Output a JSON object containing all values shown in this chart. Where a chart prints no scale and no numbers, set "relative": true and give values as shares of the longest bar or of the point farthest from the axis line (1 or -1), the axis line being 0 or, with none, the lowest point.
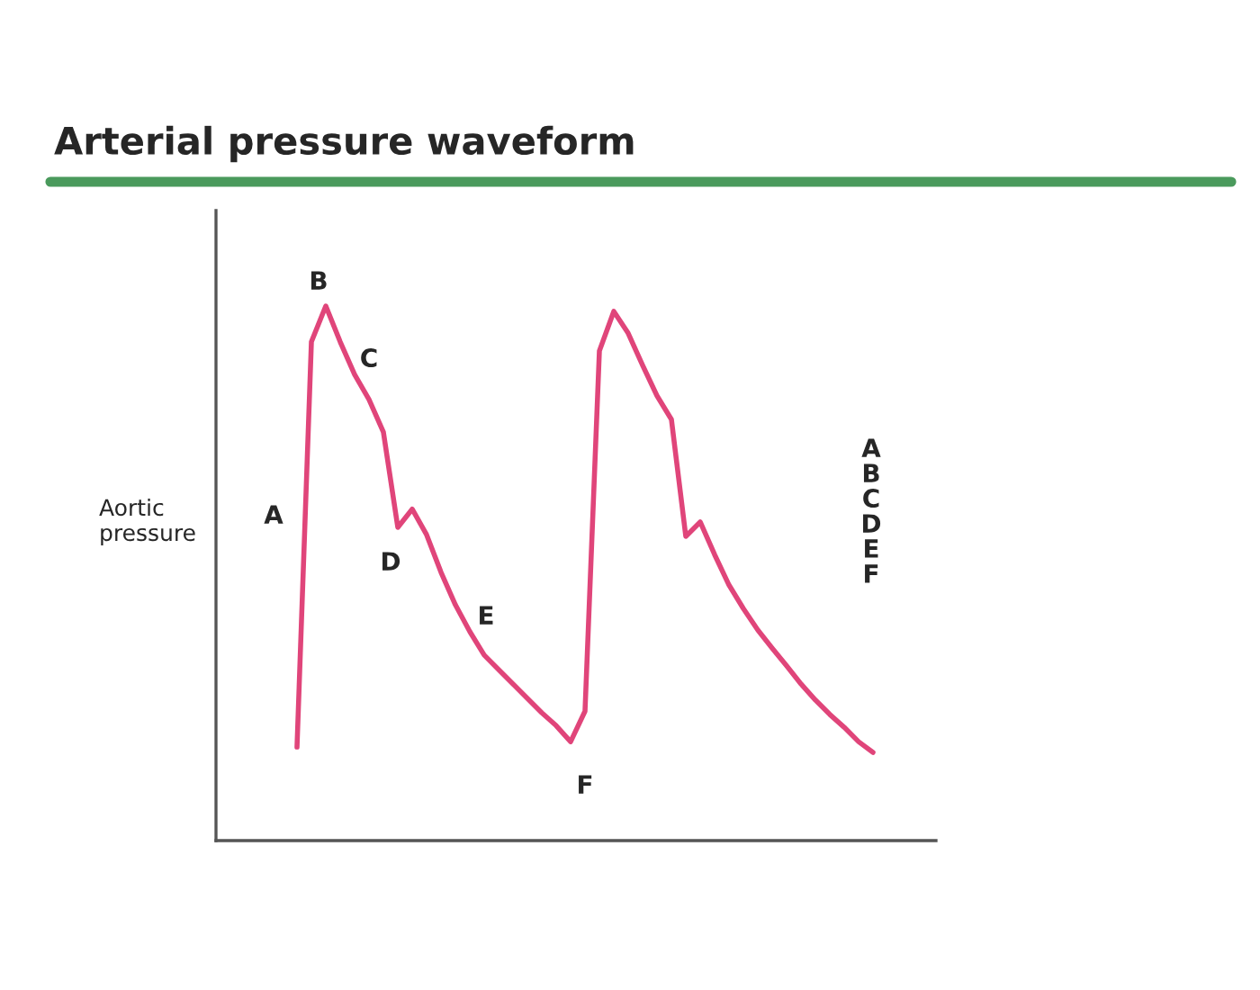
{
  "chart_data": {
    "type": "line",
    "title": "Arterial pressure waveform",
    "ylabel": "Aortic\npressure",
    "relative": true,
    "legend": false,
    "marker": "none",
    "line_style": "solid",
    "categories": [
      null,
      null,
      null,
      null,
      null,
      null,
      null,
      null,
      null,
      null,
      null,
      null,
      null,
      null,
      null,
      null,
      null,
      null,
      null,
      null,
      null,
      null,
      null,
      null,
      null,
      null,
      null,
      null,
      null,
      null,
      null,
      null,
      null,
      null,
      null,
      null,
      null,
      null,
      null,
      null,
      null
    ],
    "series": [
      {
        "color": "#e0457a",
        "values": [
          0.175,
          0.933,
          1.0,
          0.933,
          0.872,
          0.825,
          0.764,
          0.586,
          0.62,
          0.572,
          0.502,
          0.441,
          0.391,
          0.347,
          0.32,
          0.293,
          0.266,
          0.239,
          0.215,
          0.185,
          0.242,
          0.916,
          0.99,
          0.949,
          0.889,
          0.832,
          0.788,
          0.569,
          0.596,
          0.535,
          0.478,
          0.434,
          0.394,
          0.36,
          0.327,
          0.293,
          0.263,
          0.236,
          0.212,
          0.185,
          0.165
        ]
      }
    ],
    "annotations": [
      "A",
      "B",
      "C",
      "D",
      "E",
      "F",
      "A\nB\nC\nD\nE\nF"
    ]
  }
}
